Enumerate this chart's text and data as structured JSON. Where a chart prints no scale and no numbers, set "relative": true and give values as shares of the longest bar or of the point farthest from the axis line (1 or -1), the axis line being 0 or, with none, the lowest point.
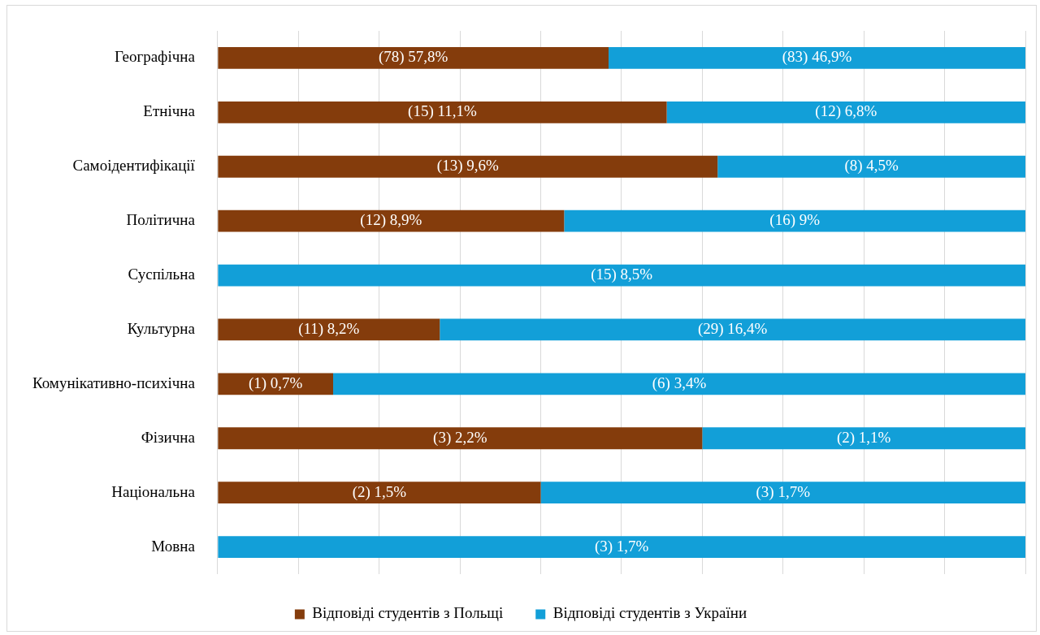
{
  "chart_data": {
    "type": "bar",
    "orientation": "horizontal",
    "stacked": true,
    "relative": true,
    "categories": [
      "Географічна",
      "Етнічна",
      "Самоідентифікації",
      "Політична",
      "Суспільна",
      "Культурна",
      "Комунікативно-психічна",
      "Фізична",
      "Національна",
      "Мовна"
    ],
    "series": [
      {
        "name": "Відповіді студентів з Польщі",
        "color": "#843c0c",
        "values": [
          0.484,
          0.556,
          0.619,
          0.429,
          null,
          0.275,
          0.143,
          0.6,
          0.4,
          null
        ]
      },
      {
        "name": "Відповіді студентів з України",
        "color": "#129fd8",
        "values": [
          0.516,
          0.444,
          0.381,
          0.571,
          1,
          0.725,
          0.857,
          0.4,
          0.6,
          1
        ]
      }
    ],
    "annotations": [
      "(78) 57,8%",
      "(83) 46,9%",
      "(15) 11,1%",
      "(12) 6,8%",
      "(13) 9,6%",
      "(8) 4,5%",
      "(12) 8,9%",
      "(16) 9%",
      "(15) 8,5%",
      "(11) 8,2%",
      "(29) 16,4%",
      "(1) 0,7%",
      "(6) 3,4%",
      "(3) 2,2%",
      "(2) 1,1%",
      "(2) 1,5%",
      "(3) 1,7%",
      "(3) 1,7%"
    ],
    "grid": "x",
    "legend": "bottom"
  }
}
